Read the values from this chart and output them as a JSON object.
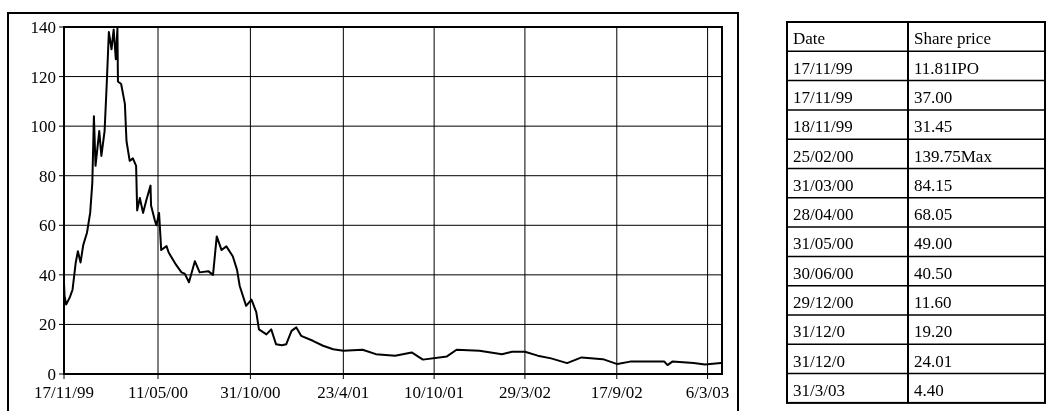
{
  "chart_data": [
    {
      "type": "line",
      "x": [
        "1999-11-17",
        "1999-11-17",
        "1999-11-18",
        "1999-11-21",
        "1999-11-28",
        "1999-12-03",
        "1999-12-09",
        "1999-12-13",
        "1999-12-18",
        "1999-12-23",
        "1999-12-30",
        "2000-01-05",
        "2000-01-09",
        "2000-01-12",
        "2000-01-15",
        "2000-01-22",
        "2000-01-26",
        "2000-02-01",
        "2000-02-05",
        "2000-02-09",
        "2000-02-14",
        "2000-02-18",
        "2000-02-22",
        "2000-02-25",
        "2000-02-26",
        "2000-03-03",
        "2000-03-10",
        "2000-03-13",
        "2000-03-19",
        "2000-03-25",
        "2000-03-31",
        "2000-04-02",
        "2000-04-07",
        "2000-04-13",
        "2000-04-19",
        "2000-04-27",
        "2000-04-28",
        "2000-05-05",
        "2000-05-08",
        "2000-05-13",
        "2000-05-17",
        "2000-05-27",
        "2000-05-31",
        "2000-06-14",
        "2000-06-24",
        "2000-06-30",
        "2000-07-08",
        "2000-07-19",
        "2000-07-28",
        "2000-08-13",
        "2000-08-22",
        "2000-08-29",
        "2000-09-07",
        "2000-09-16",
        "2000-09-28",
        "2000-10-06",
        "2000-10-11",
        "2000-10-23",
        "2000-11-02",
        "2000-11-11",
        "2000-11-16",
        "2000-11-30",
        "2000-12-09",
        "2000-12-18",
        "2000-12-29",
        "2001-01-06",
        "2001-01-16",
        "2001-01-25",
        "2001-02-03",
        "2001-02-25",
        "2001-03-16",
        "2001-04-04",
        "2001-04-23",
        "2001-05-29",
        "2001-06-23",
        "2001-07-29",
        "2001-08-29",
        "2001-09-19",
        "2001-11-03",
        "2001-11-21",
        "2002-01-03",
        "2002-02-14",
        "2002-03-05",
        "2002-03-29",
        "2002-04-22",
        "2002-05-17",
        "2002-06-16",
        "2002-07-13",
        "2002-08-22",
        "2002-09-18",
        "2002-10-12",
        "2002-12-15",
        "2002-12-21",
        "2002-12-30",
        "2003-02-08",
        "2003-03-01",
        "2003-03-31"
      ],
      "series": [
        {
          "color": "#000000",
          "values": [
            12,
            37,
            31.5,
            28,
            31,
            34,
            45,
            49.5,
            45,
            52,
            57,
            65,
            77,
            104,
            84,
            98,
            88,
            98,
            117,
            138,
            131,
            139,
            127,
            139.5,
            118,
            117,
            109,
            94,
            86,
            87,
            84,
            66,
            71,
            65,
            70,
            76,
            68,
            62,
            60,
            65,
            50,
            51.6,
            49,
            44,
            41,
            40.5,
            37,
            45.5,
            41,
            41.5,
            40,
            55.5,
            50,
            51.5,
            47.5,
            42,
            35.5,
            27.5,
            30,
            25,
            18,
            16,
            18,
            12,
            11.6,
            12,
            17.4,
            18.8,
            15.4,
            13.4,
            11.4,
            10,
            9.4,
            9.8,
            8,
            7.4,
            8.7,
            5.8,
            7.1,
            9.8,
            9.4,
            8,
            9,
            9,
            7.4,
            6.3,
            4.4,
            6.7,
            6,
            4,
            5,
            5,
            3.6,
            5,
            4.4,
            3.8,
            4.4
          ]
        }
      ],
      "xlim": [
        "1999-11-17",
        "2003-04-02"
      ],
      "ylim": [
        0,
        140
      ],
      "xticks": [
        {
          "value": "1999-11-17",
          "label": "17/11/99"
        },
        {
          "value": "2000-05-11",
          "label": "11/05/00"
        },
        {
          "value": "2000-10-31",
          "label": "31/10/00"
        },
        {
          "value": "2001-04-23",
          "label": "23/4/01"
        },
        {
          "value": "2001-10-10",
          "label": "10/10/01"
        },
        {
          "value": "2002-03-29",
          "label": "29/3/02"
        },
        {
          "value": "2002-09-17",
          "label": "17/9/02"
        },
        {
          "value": "2003-03-06",
          "label": "6/3/03"
        }
      ],
      "yticks": [
        0,
        20,
        40,
        60,
        80,
        100,
        120,
        140
      ],
      "grid": true,
      "marker": "none",
      "line_style": "solid"
    },
    {
      "type": "other",
      "xlabel": "Date",
      "ylabel": "Share price",
      "categories": [
        "17/11/99",
        "17/11/99",
        "18/11/99",
        "25/02/00",
        "31/03/00",
        "28/04/00",
        "31/05/00",
        "30/06/00",
        "29/12/00",
        "31/12/0",
        "31/12/0",
        "31/3/03"
      ],
      "value_labels": [
        "11.81IPO",
        "37.00",
        "31.45",
        "139.75Max",
        "84.15",
        "68.05",
        "49.00",
        "40.50",
        "11.60",
        "19.20",
        "24.01",
        "4.40"
      ]
    }
  ]
}
